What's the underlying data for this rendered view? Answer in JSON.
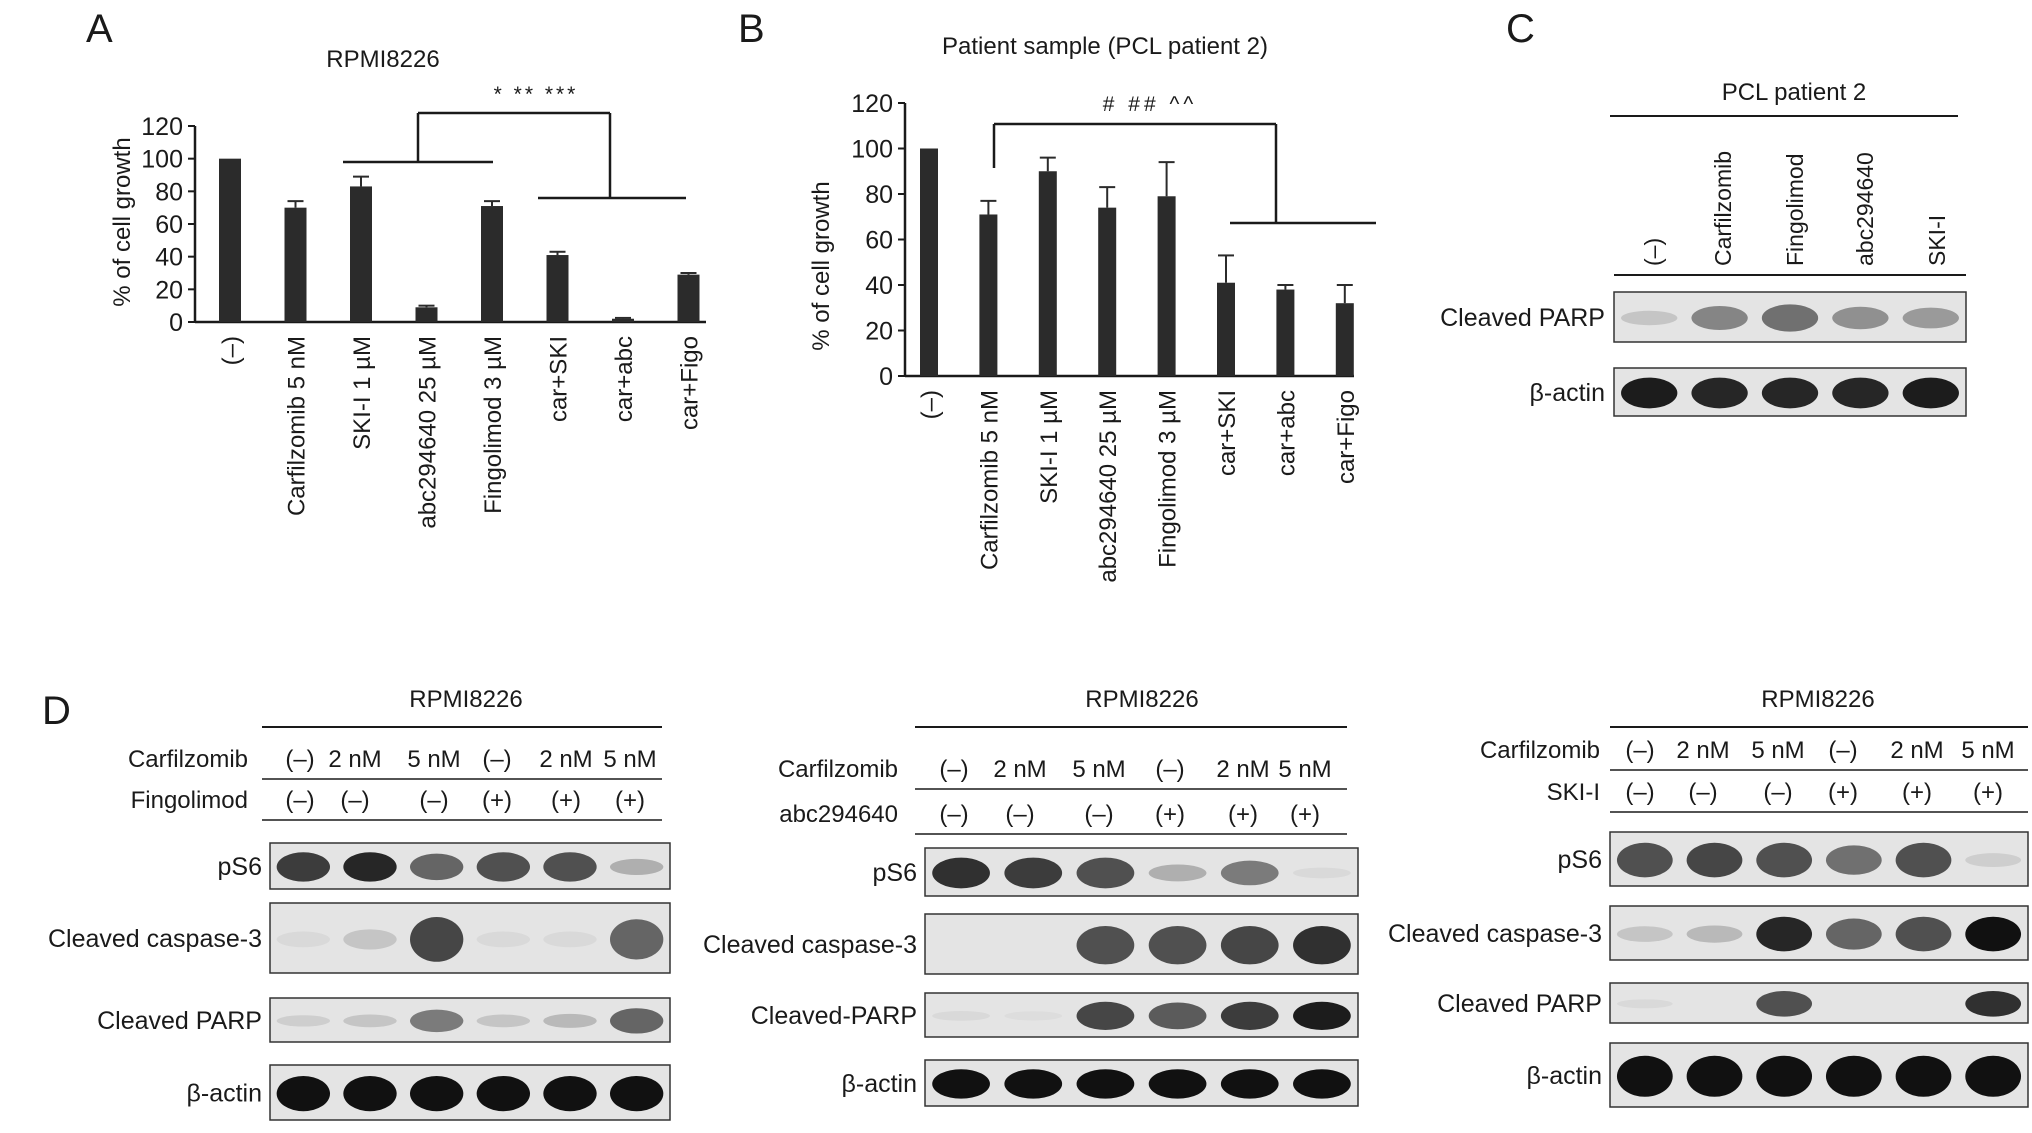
{
  "panels": {
    "A": {
      "letter": "A",
      "title": "RPMI8226",
      "ylabel": "% of cell growth",
      "significance": "* ** ***"
    },
    "B": {
      "letter": "B",
      "title": "Patient sample (PCL patient 2)",
      "ylabel": "% of cell growth",
      "significance": "# ## ^^"
    },
    "C": {
      "letter": "C",
      "title": "PCL patient 2",
      "lanes": [
        "(–)",
        "Carfilzomib",
        "Fingolimod",
        "abc294640",
        "SKI-I"
      ],
      "rows": [
        "Cleaved PARP",
        "β-actin"
      ]
    },
    "D": {
      "letter": "D",
      "blots": [
        {
          "title": "RPMI8226",
          "treatments": [
            {
              "label": "Carfilzomib",
              "values": [
                "(–)",
                "2 nM",
                "5 nM",
                "(–)",
                "2 nM",
                "5 nM"
              ]
            },
            {
              "label": "Fingolimod",
              "values": [
                "(–)",
                "(–)",
                "(–)",
                "(+)",
                "(+)",
                "(+)"
              ]
            }
          ],
          "rows": [
            "pS6",
            "Cleaved caspase-3",
            "Cleaved PARP",
            "β-actin"
          ]
        },
        {
          "title": "RPMI8226",
          "treatments": [
            {
              "label": "Carfilzomib",
              "values": [
                "(–)",
                "2 nM",
                "5 nM",
                "(–)",
                "2 nM",
                "5 nM"
              ]
            },
            {
              "label": "abc294640",
              "values": [
                "(–)",
                "(–)",
                "(–)",
                "(+)",
                "(+)",
                "(+)"
              ]
            }
          ],
          "rows": [
            "pS6",
            "Cleaved caspase-3",
            "Cleaved-PARP",
            "β-actin"
          ]
        },
        {
          "title": "RPMI8226",
          "treatments": [
            {
              "label": "Carfilzomib",
              "values": [
                "(–)",
                "2 nM",
                "5 nM",
                "(–)",
                "2 nM",
                "5 nM"
              ]
            },
            {
              "label": "SKI-I",
              "values": [
                "(–)",
                "(–)",
                "(–)",
                "(+)",
                "(+)",
                "(+)"
              ]
            }
          ],
          "rows": [
            "pS6",
            "Cleaved caspase-3",
            "Cleaved PARP",
            "β-actin"
          ]
        }
      ]
    }
  },
  "chart_data": [
    {
      "type": "bar",
      "title": "RPMI8226",
      "ylabel": "% of cell growth",
      "ylim": [
        0,
        120
      ],
      "yticks": [
        0,
        20,
        40,
        60,
        80,
        100,
        120
      ],
      "categories": [
        "(–)",
        "Carfilzomib 5 nM",
        "SKI-I 1 µM",
        "abc294640 25 µM",
        "Fingolimod 3 µM",
        "car+SKI",
        "car+abc",
        "car+Figo"
      ],
      "values": [
        100,
        70,
        83,
        9,
        71,
        41,
        2,
        29
      ],
      "errors": [
        0,
        4,
        6,
        1,
        3,
        2,
        0.5,
        1
      ],
      "annotation": "* ** ***"
    },
    {
      "type": "bar",
      "title": "Patient sample (PCL patient 2)",
      "ylabel": "% of cell growth",
      "ylim": [
        0,
        120
      ],
      "yticks": [
        0,
        20,
        40,
        60,
        80,
        100,
        120
      ],
      "categories": [
        "(–)",
        "Carfilzomib 5 nM",
        "SKI-I 1 µM",
        "abc294640 25 µM",
        "Fingolimod 3 µM",
        "car+SKI",
        "car+abc",
        "car+Figo"
      ],
      "values": [
        100,
        71,
        90,
        74,
        79,
        41,
        38,
        32
      ],
      "errors": [
        0,
        6,
        6,
        9,
        15,
        12,
        2,
        8
      ],
      "annotation": "# ## ^^"
    }
  ],
  "colors": {
    "bar": "#2b2b2b",
    "axis": "#1a1a1a",
    "blot_background": "#e4e4e4",
    "band": "#111111"
  }
}
